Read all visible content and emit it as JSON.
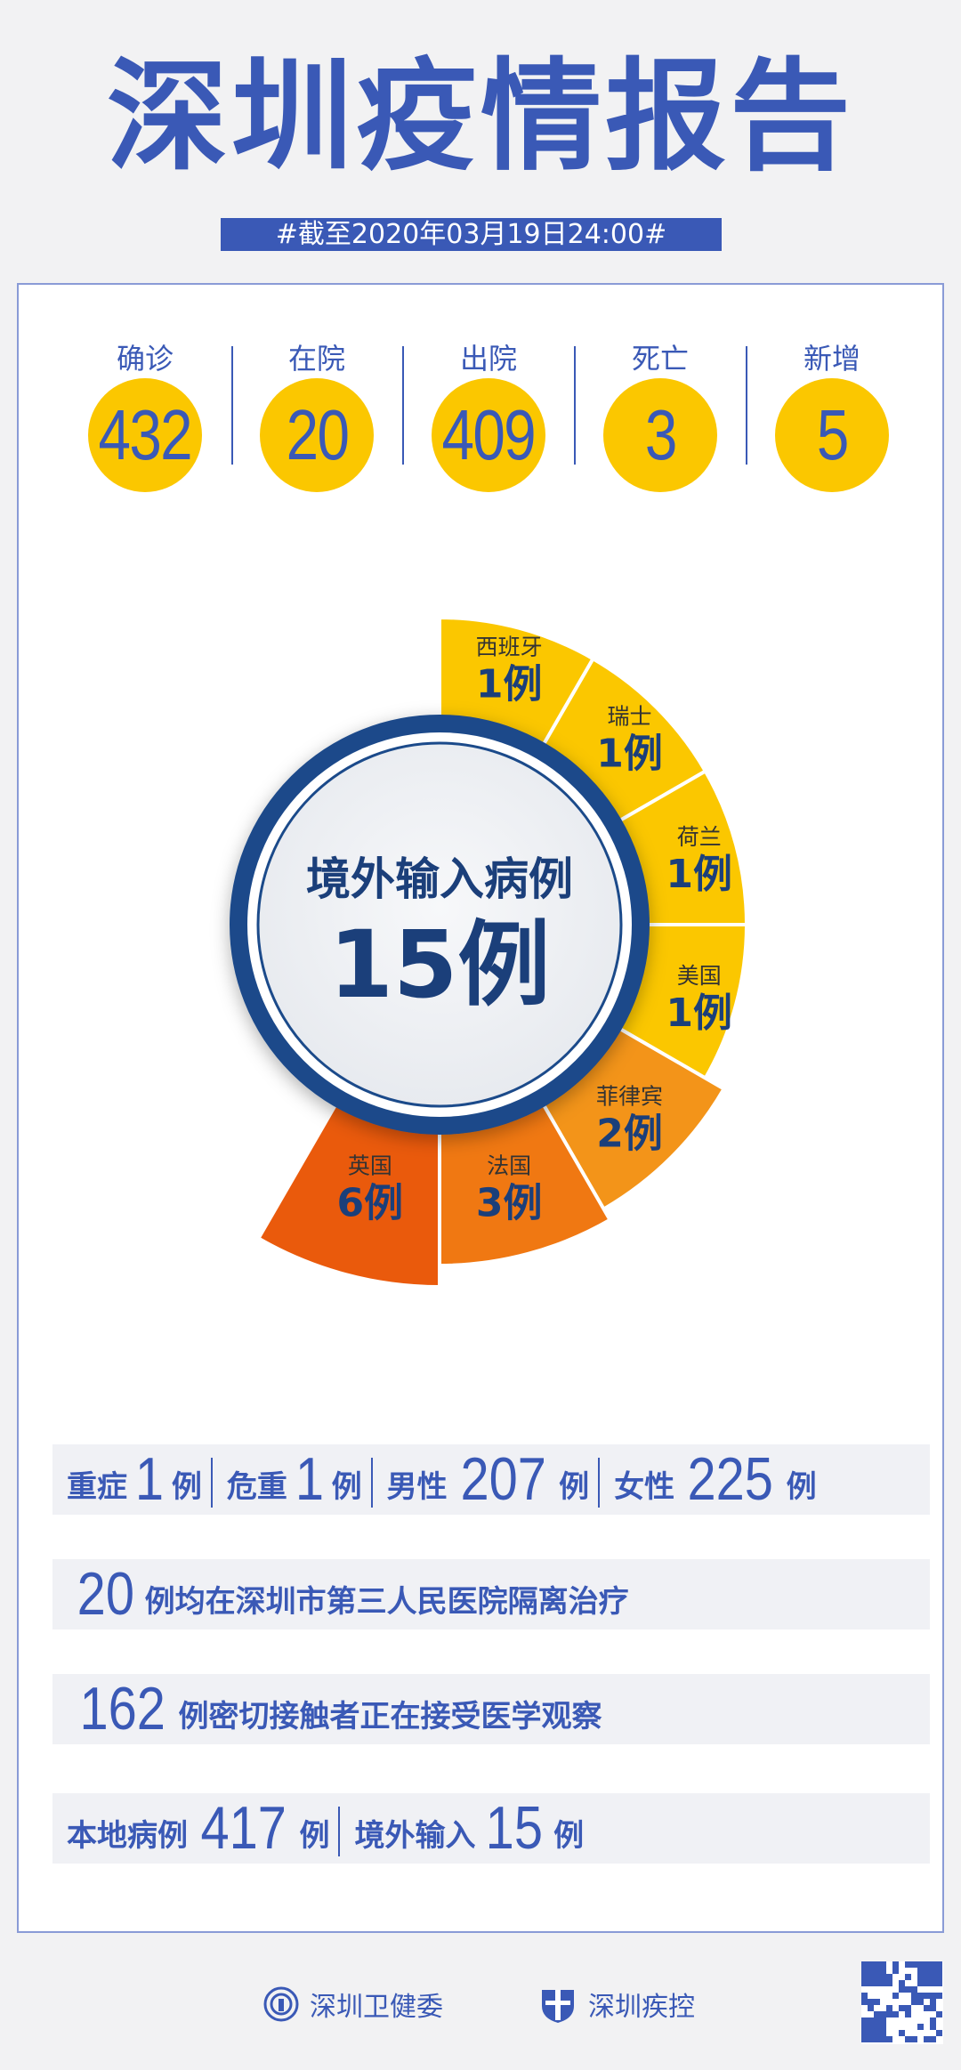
{
  "title": "深圳疫情报告",
  "date_banner": "#截至2020年03月19日24:00#",
  "stats": [
    {
      "label": "确诊",
      "value": "432"
    },
    {
      "label": "在院",
      "value": "20"
    },
    {
      "label": "出院",
      "value": "409"
    },
    {
      "label": "死亡",
      "value": "3"
    },
    {
      "label": "新增",
      "value": "5"
    }
  ],
  "colors": {
    "primary": "#3a59b6",
    "navy": "#1b4a8a",
    "yellow": "#fbc700",
    "orange_ph": "#f39419",
    "orange_fr": "#f07812",
    "orange_uk": "#ea5a0c"
  },
  "chart_data": {
    "type": "pie",
    "title": "境外输入病例",
    "total": "15例",
    "categories": [
      "西班牙",
      "瑞士",
      "荷兰",
      "美国",
      "菲律宾",
      "法国",
      "英国"
    ],
    "values": [
      1,
      1,
      1,
      1,
      2,
      3,
      6
    ],
    "value_labels": [
      "1例",
      "1例",
      "1例",
      "1例",
      "2例",
      "3例",
      "6例"
    ]
  },
  "rows": {
    "r1": {
      "a_label": "重症",
      "a_val": "1",
      "a_unit": "例",
      "b_label": "危重",
      "b_val": "1",
      "b_unit": "例",
      "c_label": "男性",
      "c_val": "207",
      "c_unit": "例",
      "d_label": "女性",
      "d_val": "225",
      "d_unit": "例"
    },
    "r2": {
      "val": "20",
      "text": "例均在深圳市第三人民医院隔离治疗"
    },
    "r3": {
      "val": "162",
      "text": "例密切接触者正在接受医学观察"
    },
    "r4": {
      "a_label": "本地病例",
      "a_val": "417",
      "a_unit": "例",
      "b_label": "境外输入",
      "b_val": "15",
      "b_unit": "例"
    }
  },
  "footer": {
    "org1": "深圳卫健委",
    "org2": "深圳疾控"
  }
}
